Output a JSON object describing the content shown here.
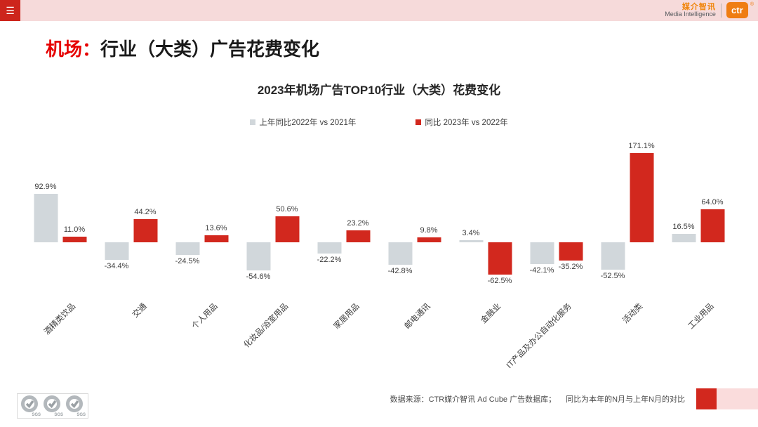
{
  "header": {
    "menu_icon": "☰",
    "brand_cn": "媒介智讯",
    "brand_en": "Media Intelligence",
    "brand_logo": "ctr",
    "reg_mark": "®"
  },
  "page_title": {
    "prefix": "机场：",
    "rest": "行业（大类）广告花费变化"
  },
  "colors": {
    "accent_red": "#d2281e",
    "bar_gray": "#d1d7db",
    "header_pink": "#f6dada",
    "brand_orange": "#ef7d12"
  },
  "chart_data": {
    "type": "bar",
    "title": "2023年机场广告TOP10行业（大类）花费变化",
    "categories": [
      "酒精类饮品",
      "交通",
      "个人用品",
      "化妆品/浴室用品",
      "家居用品",
      "邮电通讯",
      "金融业",
      "IT产品及办公自动化服务",
      "活动类",
      "工业用品"
    ],
    "series": [
      {
        "name": "上年同比2022年  vs  2021年",
        "color": "#d1d7db",
        "values": [
          92.9,
          -34.4,
          -24.5,
          -54.6,
          -22.2,
          -42.8,
          3.4,
          -42.1,
          -52.5,
          16.5
        ]
      },
      {
        "name": "同比 2023年  vs  2022年",
        "color": "#d2281e",
        "values": [
          11.0,
          44.2,
          13.6,
          50.6,
          23.2,
          9.8,
          -62.5,
          -35.2,
          171.1,
          64.0
        ]
      }
    ],
    "value_label_format": "{value}%",
    "ylim": [
      -80,
      190
    ],
    "grid": false,
    "legend_position": "top",
    "xlabel": "",
    "ylabel": ""
  },
  "footer": {
    "source": "数据来源：CTR媒介智讯 Ad Cube 广告数据库；",
    "note": "同比为本年的N月与上年N月的对比",
    "sgs_label": "SGS"
  }
}
